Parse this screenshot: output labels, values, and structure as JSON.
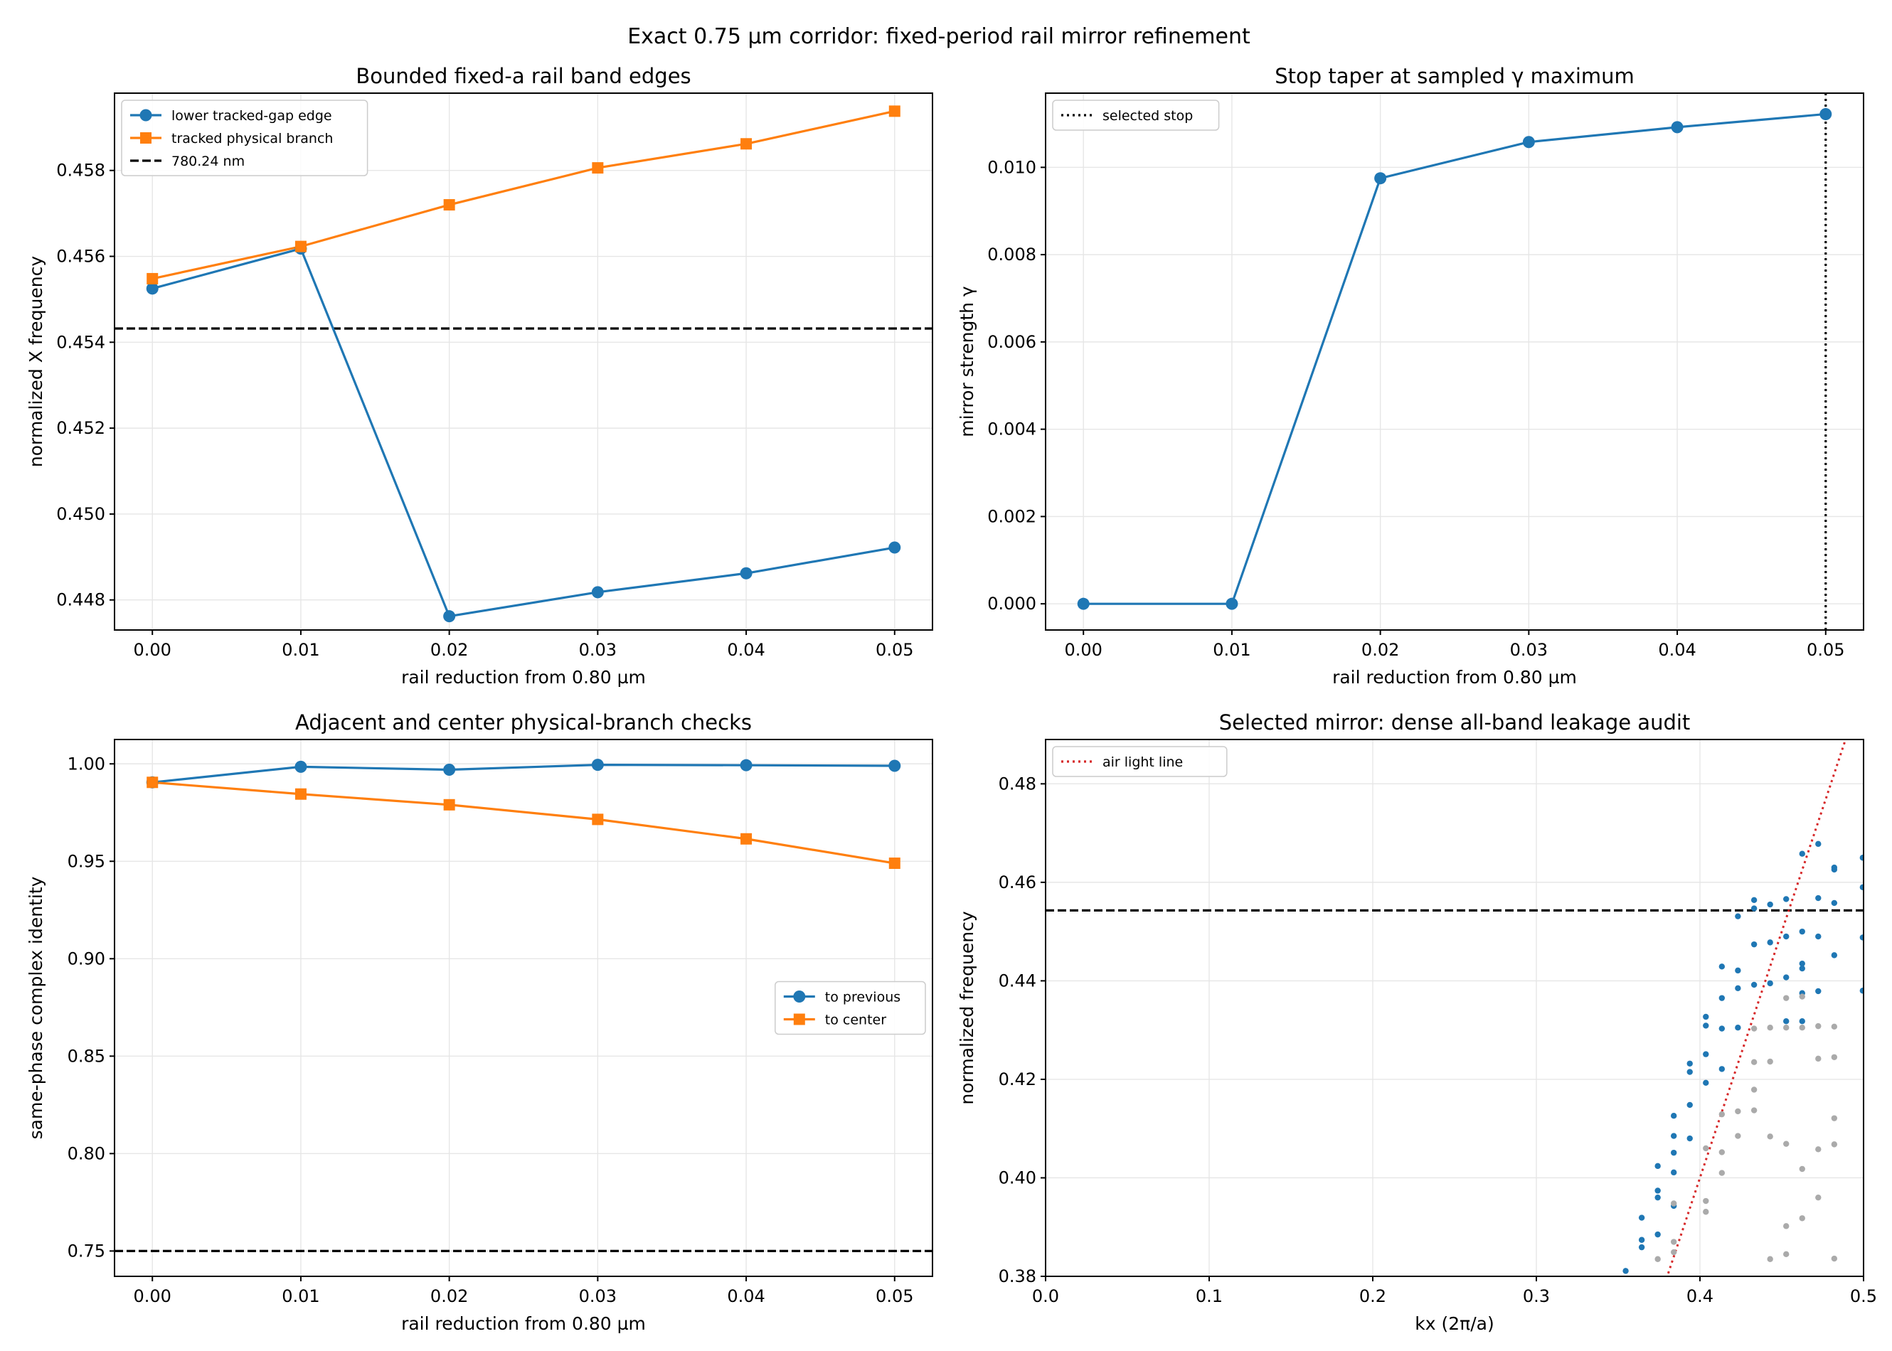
{
  "figure_title": "Exact 0.75 µm corridor: fixed-period rail mirror refinement",
  "colors": {
    "blue": "#1f77b4",
    "orange": "#ff7f0e",
    "gray": "#aaaaaa",
    "red": "#d62728",
    "black": "#000000"
  },
  "chart_data": [
    {
      "type": "line",
      "title": "Bounded fixed-a rail band edges",
      "xlabel": "rail reduction from 0.80 µm",
      "ylabel": "normalized X frequency",
      "x": [
        0.0,
        0.01,
        0.02,
        0.03,
        0.04,
        0.05
      ],
      "xticks": [
        "0.00",
        "0.01",
        "0.02",
        "0.03",
        "0.04",
        "0.05"
      ],
      "yticks": [
        "0.448",
        "0.450",
        "0.452",
        "0.454",
        "0.456",
        "0.458"
      ],
      "ylim": [
        0.4473,
        0.4598
      ],
      "grid": true,
      "legend_position": "upper-left",
      "series": [
        {
          "name": "lower tracked-gap edge",
          "marker": "circle",
          "color": "#1f77b4",
          "values": [
            0.45525,
            0.45618,
            0.44762,
            0.44818,
            0.44862,
            0.44922
          ]
        },
        {
          "name": "tracked physical branch",
          "marker": "square",
          "color": "#ff7f0e",
          "values": [
            0.45548,
            0.45623,
            0.4572,
            0.45806,
            0.45862,
            0.45938
          ]
        }
      ],
      "hlines": [
        {
          "name": "780.24 nm",
          "y": 0.45432,
          "style": "dashed",
          "color": "#000000"
        }
      ]
    },
    {
      "type": "line",
      "title": "Stop taper at sampled γ maximum",
      "xlabel": "rail reduction from 0.80 µm",
      "ylabel": "mirror strength γ",
      "x": [
        0.0,
        0.01,
        0.02,
        0.03,
        0.04,
        0.05
      ],
      "xticks": [
        "0.00",
        "0.01",
        "0.02",
        "0.03",
        "0.04",
        "0.05"
      ],
      "yticks": [
        "0.000",
        "0.002",
        "0.004",
        "0.006",
        "0.008",
        "0.010"
      ],
      "ylim": [
        -0.0006,
        0.0117
      ],
      "grid": true,
      "legend_position": "upper-left",
      "series": [
        {
          "name": "",
          "marker": "circle",
          "color": "#1f77b4",
          "values": [
            0.0,
            0.0,
            0.00975,
            0.01058,
            0.01092,
            0.01122
          ]
        }
      ],
      "vlines": [
        {
          "name": "selected stop",
          "x": 0.05,
          "style": "dotted",
          "color": "#000000"
        }
      ]
    },
    {
      "type": "line",
      "title": "Adjacent and center physical-branch checks",
      "xlabel": "rail reduction from 0.80 µm",
      "ylabel": "same-phase complex identity",
      "x": [
        0.0,
        0.01,
        0.02,
        0.03,
        0.04,
        0.05
      ],
      "xticks": [
        "0.00",
        "0.01",
        "0.02",
        "0.03",
        "0.04",
        "0.05"
      ],
      "yticks": [
        "0.75",
        "0.80",
        "0.85",
        "0.90",
        "0.95",
        "1.00"
      ],
      "ylim": [
        0.737,
        1.0125
      ],
      "grid": true,
      "legend_position": "center-right",
      "series": [
        {
          "name": "to previous",
          "marker": "circle",
          "color": "#1f77b4",
          "values": [
            0.9905,
            0.9985,
            0.997,
            0.9995,
            0.9993,
            0.999
          ]
        },
        {
          "name": "to center",
          "marker": "square",
          "color": "#ff7f0e",
          "values": [
            0.9905,
            0.9845,
            0.979,
            0.9715,
            0.9615,
            0.949
          ]
        }
      ],
      "hlines": [
        {
          "y": 0.75,
          "style": "dashed",
          "color": "#000000"
        }
      ]
    },
    {
      "type": "scatter",
      "title": "Selected mirror: dense all-band leakage audit",
      "xlabel": "kx (2π/a)",
      "ylabel": "normalized frequency",
      "xticks": [
        "0.0",
        "0.1",
        "0.2",
        "0.3",
        "0.4",
        "0.5"
      ],
      "yticks": [
        "0.38",
        "0.40",
        "0.42",
        "0.44",
        "0.46",
        "0.48"
      ],
      "xlim": [
        0.0,
        0.5
      ],
      "ylim": [
        0.38,
        0.489
      ],
      "grid": true,
      "legend_position": "upper-left",
      "hlines": [
        {
          "y": 0.4543,
          "style": "dashed",
          "color": "#000000"
        }
      ],
      "light_line": {
        "name": "air light line",
        "style": "dotted",
        "color": "#d62728",
        "x_start": 0.3795,
        "x_end": 0.4895
      },
      "series": [
        {
          "name": "",
          "color": "#1f77b4",
          "points": [
            [
              0.3546,
              0.3811
            ],
            [
              0.3644,
              0.3859
            ],
            [
              0.3644,
              0.3874
            ],
            [
              0.3644,
              0.3919
            ],
            [
              0.3742,
              0.3885
            ],
            [
              0.3742,
              0.396
            ],
            [
              0.3742,
              0.3974
            ],
            [
              0.3742,
              0.4024
            ],
            [
              0.384,
              0.3943
            ],
            [
              0.384,
              0.4011
            ],
            [
              0.384,
              0.4051
            ],
            [
              0.384,
              0.4085
            ],
            [
              0.384,
              0.4126
            ],
            [
              0.3938,
              0.408
            ],
            [
              0.3938,
              0.4148
            ],
            [
              0.3938,
              0.4215
            ],
            [
              0.3938,
              0.4232
            ],
            [
              0.4036,
              0.4193
            ],
            [
              0.4036,
              0.4251
            ],
            [
              0.4036,
              0.4309
            ],
            [
              0.4036,
              0.4327
            ],
            [
              0.4134,
              0.4221
            ],
            [
              0.4134,
              0.4303
            ],
            [
              0.4134,
              0.4365
            ],
            [
              0.4134,
              0.4429
            ],
            [
              0.4232,
              0.4305
            ],
            [
              0.4232,
              0.4385
            ],
            [
              0.4232,
              0.4421
            ],
            [
              0.4232,
              0.4531
            ],
            [
              0.4331,
              0.4392
            ],
            [
              0.4331,
              0.4474
            ],
            [
              0.4331,
              0.4547
            ],
            [
              0.4331,
              0.4564
            ],
            [
              0.4429,
              0.4395
            ],
            [
              0.4429,
              0.4478
            ],
            [
              0.4429,
              0.4555
            ],
            [
              0.4527,
              0.4318
            ],
            [
              0.4527,
              0.4407
            ],
            [
              0.4527,
              0.449
            ],
            [
              0.4527,
              0.4566
            ],
            [
              0.4625,
              0.4318
            ],
            [
              0.4625,
              0.4375
            ],
            [
              0.4625,
              0.4425
            ],
            [
              0.4625,
              0.4435
            ],
            [
              0.4625,
              0.45
            ],
            [
              0.4625,
              0.4658
            ],
            [
              0.4723,
              0.4379
            ],
            [
              0.4723,
              0.449
            ],
            [
              0.4723,
              0.4568
            ],
            [
              0.4723,
              0.4678
            ],
            [
              0.4821,
              0.4452
            ],
            [
              0.4821,
              0.4558
            ],
            [
              0.4821,
              0.4626
            ],
            [
              0.4821,
              0.463
            ],
            [
              0.4995,
              0.438
            ],
            [
              0.4995,
              0.4488
            ],
            [
              0.4995,
              0.459
            ],
            [
              0.4995,
              0.465
            ]
          ]
        },
        {
          "name": "",
          "color": "#aaaaaa",
          "points": [
            [
              0.3742,
              0.3835
            ],
            [
              0.384,
              0.3849
            ],
            [
              0.384,
              0.387
            ],
            [
              0.384,
              0.3948
            ],
            [
              0.4036,
              0.3931
            ],
            [
              0.4036,
              0.3953
            ],
            [
              0.4036,
              0.406
            ],
            [
              0.4134,
              0.401
            ],
            [
              0.4134,
              0.4052
            ],
            [
              0.4134,
              0.4129
            ],
            [
              0.4232,
              0.4085
            ],
            [
              0.4232,
              0.4135
            ],
            [
              0.4331,
              0.4137
            ],
            [
              0.4331,
              0.4179
            ],
            [
              0.4331,
              0.4235
            ],
            [
              0.4331,
              0.4303
            ],
            [
              0.4429,
              0.3835
            ],
            [
              0.4429,
              0.4084
            ],
            [
              0.4429,
              0.4236
            ],
            [
              0.4429,
              0.4305
            ],
            [
              0.4527,
              0.3845
            ],
            [
              0.4527,
              0.3902
            ],
            [
              0.4527,
              0.4069
            ],
            [
              0.4527,
              0.4305
            ],
            [
              0.4527,
              0.4365
            ],
            [
              0.4625,
              0.3918
            ],
            [
              0.4625,
              0.4018
            ],
            [
              0.4625,
              0.4305
            ],
            [
              0.4625,
              0.4368
            ],
            [
              0.4723,
              0.396
            ],
            [
              0.4723,
              0.4058
            ],
            [
              0.4723,
              0.4242
            ],
            [
              0.4723,
              0.4308
            ],
            [
              0.4821,
              0.3836
            ],
            [
              0.4821,
              0.4068
            ],
            [
              0.4821,
              0.4121
            ],
            [
              0.4821,
              0.4245
            ],
            [
              0.4821,
              0.4307
            ]
          ]
        }
      ]
    }
  ]
}
